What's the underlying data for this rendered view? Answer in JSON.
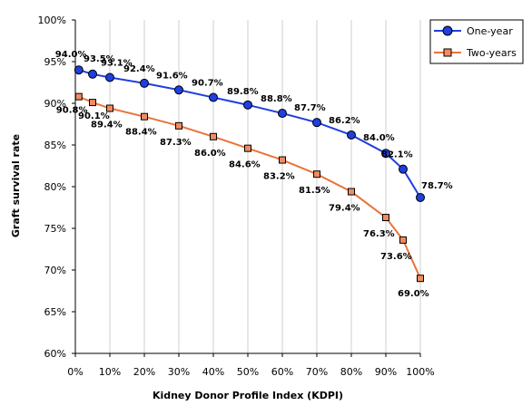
{
  "chart_data": {
    "type": "line",
    "x": [
      1,
      5,
      10,
      20,
      30,
      40,
      50,
      60,
      70,
      80,
      90,
      95,
      100
    ],
    "series": [
      {
        "name": "One-year",
        "color": "#1f3fe0",
        "fill": "#1f3fe0",
        "marker": "circle",
        "values": [
          94.0,
          93.5,
          93.1,
          92.4,
          91.6,
          90.7,
          89.8,
          88.8,
          87.7,
          86.2,
          84.0,
          82.1,
          78.7
        ],
        "labels": [
          "94.0%",
          "93.5%",
          "93.1%",
          "92.4%",
          "91.6%",
          "90.7%",
          "89.8%",
          "88.8%",
          "87.7%",
          "86.2%",
          "84.0%",
          "82.1%",
          "78.7%"
        ]
      },
      {
        "name": "Two-years",
        "color": "#e8743b",
        "fill": "#f08c5f",
        "marker": "square",
        "values": [
          90.8,
          90.1,
          89.4,
          88.4,
          87.3,
          86.0,
          84.6,
          83.2,
          81.5,
          79.4,
          76.3,
          73.6,
          69.0
        ],
        "labels": [
          "90.8%",
          "90.1%",
          "89.4%",
          "88.4%",
          "87.3%",
          "86.0%",
          "84.6%",
          "83.2%",
          "81.5%",
          "79.4%",
          "76.3%",
          "73.6%",
          "69.0%"
        ]
      }
    ],
    "xlabel": "Kidney Donor Profile Index (KDPI)",
    "ylabel": "Graft survival rate",
    "xlim": [
      0,
      100
    ],
    "ylim": [
      60,
      100
    ],
    "xticks": [
      "0%",
      "10%",
      "20%",
      "30%",
      "40%",
      "50%",
      "60%",
      "70%",
      "80%",
      "90%",
      "100%"
    ],
    "yticks": [
      "60%",
      "65%",
      "70%",
      "75%",
      "80%",
      "85%",
      "90%",
      "95%",
      "100%"
    ],
    "grid": "vertical",
    "legend": "top-right"
  }
}
